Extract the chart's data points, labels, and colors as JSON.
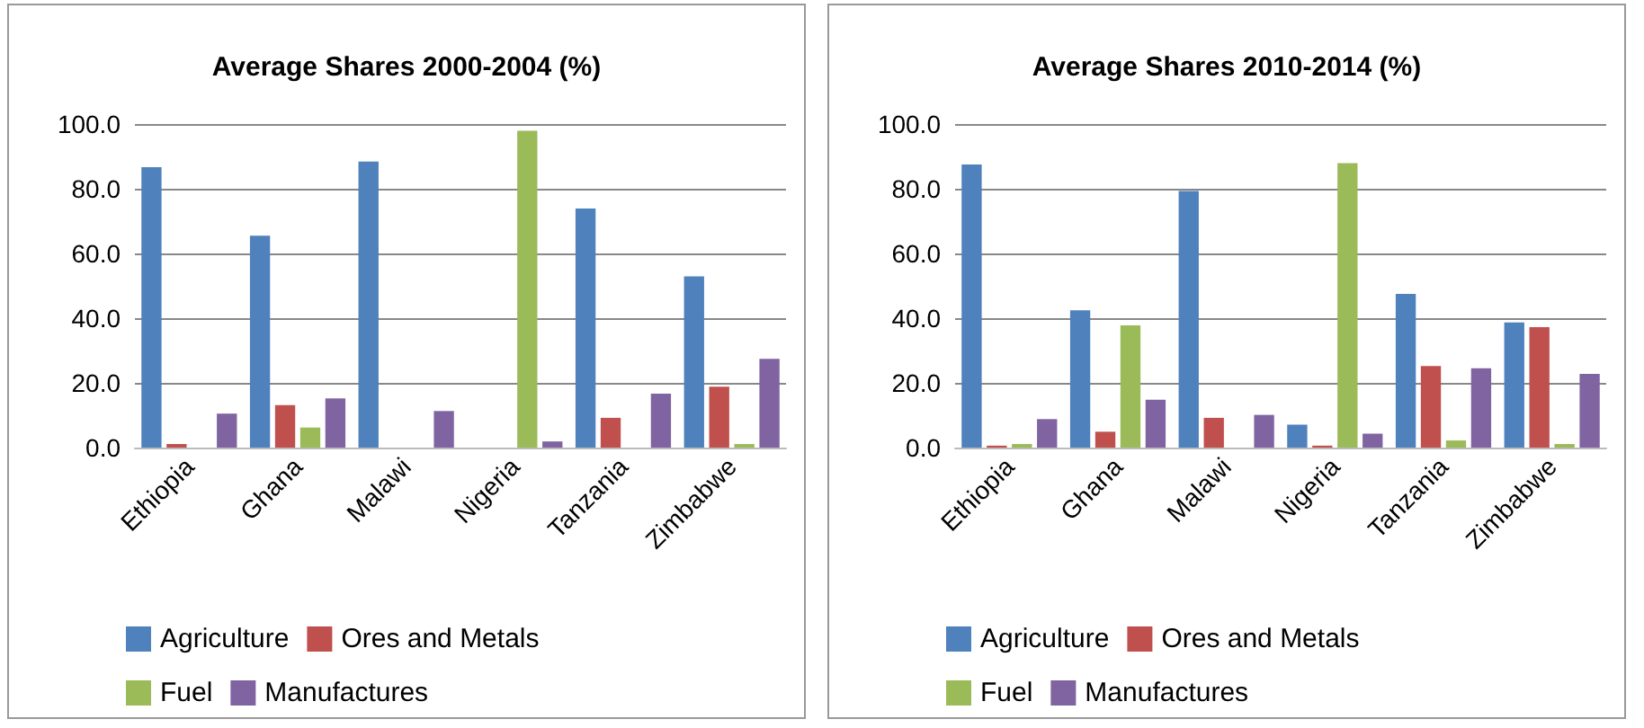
{
  "chart_data": [
    {
      "type": "bar",
      "title": "Average Shares 2000-2004 (%)",
      "categories": [
        "Ethiopia",
        "Ghana",
        "Malawi",
        "Nigeria",
        "Tanzania",
        "Zimbabwe"
      ],
      "series": [
        {
          "name": "Agriculture",
          "color": "#4f81bd",
          "values": [
            86.7,
            65.5,
            88.4,
            null,
            73.9,
            52.9
          ]
        },
        {
          "name": "Ores and Metals",
          "color": "#c0504d",
          "values": [
            1.1,
            13.1,
            null,
            null,
            9.2,
            18.8
          ]
        },
        {
          "name": "Fuel",
          "color": "#9bbb59",
          "values": [
            null,
            6.2,
            null,
            97.9,
            null,
            1.1
          ]
        },
        {
          "name": "Manufactures",
          "color": "#8064a2",
          "values": [
            10.5,
            15.2,
            11.3,
            1.9,
            16.7,
            27.4
          ]
        }
      ],
      "ylim": [
        0,
        100
      ],
      "yticks": [
        {
          "value": 0,
          "label": "0.0"
        },
        {
          "value": 20,
          "label": "20.0"
        },
        {
          "value": 40,
          "label": "40.0"
        },
        {
          "value": 60,
          "label": "60.0"
        },
        {
          "value": 80,
          "label": "80.0"
        },
        {
          "value": 100,
          "label": "100.0"
        }
      ],
      "grid": "y",
      "legend": "bottom"
    },
    {
      "type": "bar",
      "title": "Average Shares 2010-2014 (%)",
      "categories": [
        "Ethiopia",
        "Ghana",
        "Malawi",
        "Nigeria",
        "Tanzania",
        "Zimbabwe"
      ],
      "series": [
        {
          "name": "Agriculture",
          "color": "#4f81bd",
          "values": [
            87.5,
            42.4,
            79.3,
            7.1,
            47.5,
            38.7
          ]
        },
        {
          "name": "Ores and Metals",
          "color": "#c0504d",
          "values": [
            0.6,
            4.9,
            9.2,
            0.6,
            25.2,
            37.2
          ]
        },
        {
          "name": "Fuel",
          "color": "#9bbb59",
          "values": [
            1.1,
            37.8,
            null,
            87.9,
            2.2,
            1.1
          ]
        },
        {
          "name": "Manufactures",
          "color": "#8064a2",
          "values": [
            8.8,
            14.8,
            10.1,
            4.3,
            24.5,
            22.8
          ]
        }
      ],
      "ylim": [
        0,
        100
      ],
      "yticks": [
        {
          "value": 0,
          "label": "0.0"
        },
        {
          "value": 20,
          "label": "20.0"
        },
        {
          "value": 40,
          "label": "40.0"
        },
        {
          "value": 60,
          "label": "60.0"
        },
        {
          "value": 80,
          "label": "80.0"
        },
        {
          "value": 100,
          "label": "100.0"
        }
      ],
      "grid": "y",
      "legend": "bottom"
    }
  ]
}
